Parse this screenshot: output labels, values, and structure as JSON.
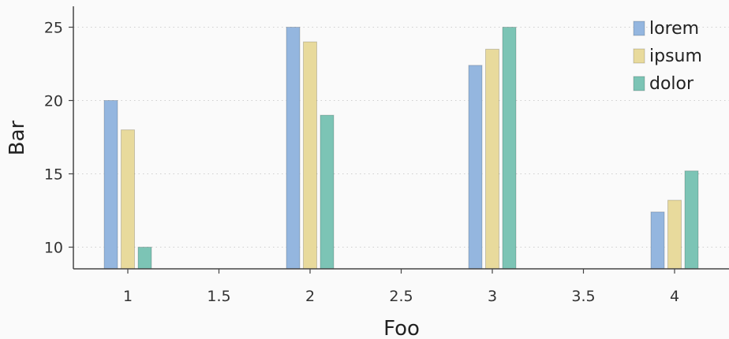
{
  "chart_data": {
    "type": "bar",
    "xlabel": "Foo",
    "ylabel": "Bar",
    "x": [
      1,
      2,
      3,
      4
    ],
    "xlim": [
      0.7,
      4.3
    ],
    "ylim": [
      8.5,
      26.5
    ],
    "xticks": [
      1,
      1.5,
      2,
      2.5,
      3,
      3.5,
      4
    ],
    "xtick_labels": [
      "1",
      "1.5",
      "2",
      "2.5",
      "3",
      "3.5",
      "4"
    ],
    "yticks": [
      10,
      15,
      20,
      25
    ],
    "ytick_labels": [
      "10",
      "15",
      "20",
      "25"
    ],
    "grid": "horizontal dotted",
    "legend_position": "top-right",
    "series": [
      {
        "name": "lorem",
        "color": "#94b6df",
        "values": [
          20,
          25,
          22.4,
          12.4
        ]
      },
      {
        "name": "ipsum",
        "color": "#e8da9c",
        "values": [
          18,
          24,
          23.5,
          13.2
        ]
      },
      {
        "name": "dolor",
        "color": "#7cc4b5",
        "values": [
          10,
          19,
          25,
          15.2
        ]
      }
    ]
  }
}
